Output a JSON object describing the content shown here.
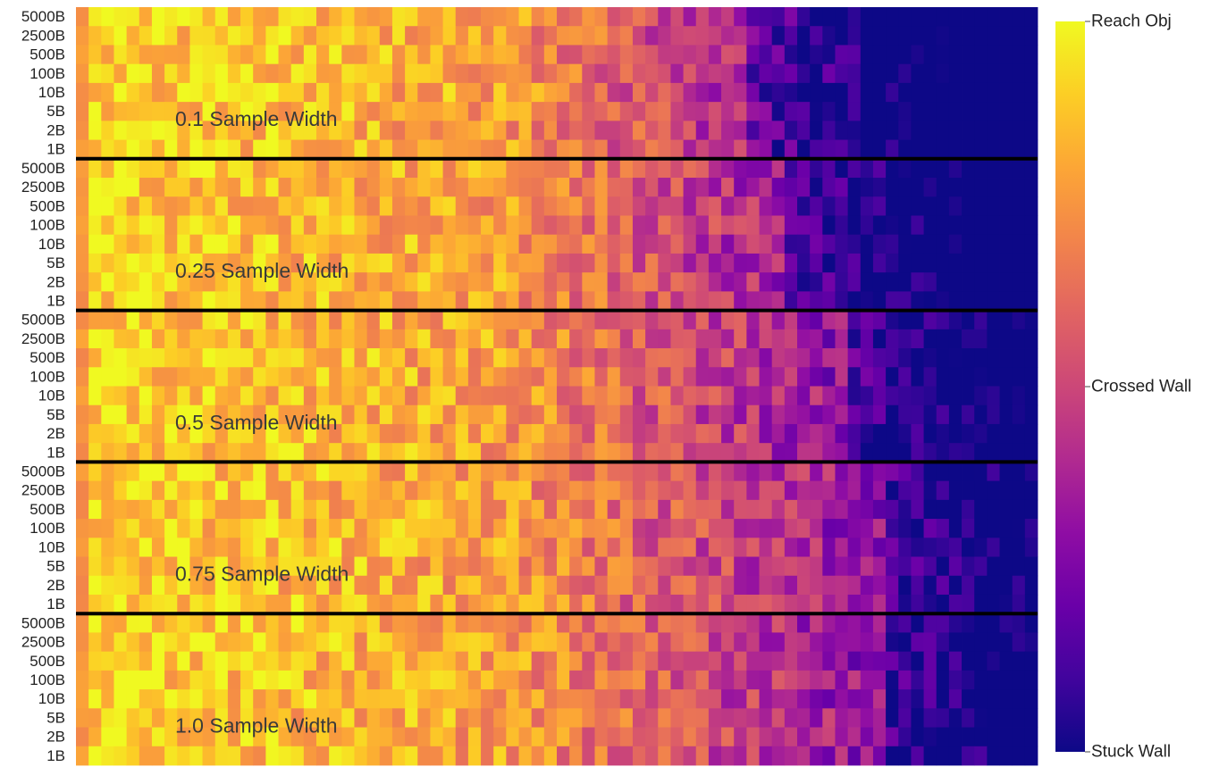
{
  "chart_data": {
    "type": "heatmap",
    "row_labels": [
      "5000B",
      "2500B",
      "500B",
      "100B",
      "10B",
      "5B",
      "2B",
      "1B"
    ],
    "groups": [
      {
        "label": "0.1 Sample Width",
        "boundary": 0.7
      },
      {
        "label": "0.25 Sample Width",
        "boundary": 0.74
      },
      {
        "label": "0.5 Sample Width",
        "boundary": 0.8
      },
      {
        "label": "0.75 Sample Width",
        "boundary": 0.85
      },
      {
        "label": "1.0 Sample Width",
        "boundary": 0.84
      }
    ],
    "n_columns": 76,
    "value_range": [
      0,
      1
    ],
    "colorscale": "plasma",
    "colorbar": {
      "ticks": [
        {
          "value": 1.0,
          "label": "Reach Obj"
        },
        {
          "value": 0.5,
          "label": "Crossed Wall"
        },
        {
          "value": 0.0,
          "label": "Stuck Wall"
        }
      ]
    },
    "group_separator_color": "#000000"
  }
}
